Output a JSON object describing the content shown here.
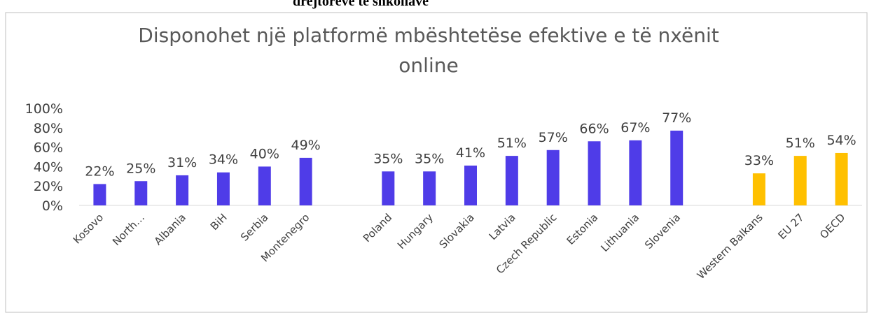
{
  "header_fragment": "drejtorëve të shkollave",
  "chart_data": {
    "type": "bar",
    "title": "Disponohet një platformë mbështetëse efektive e të nxënit online",
    "categories": [
      "Kosovo",
      "North…",
      "Albania",
      "BiH",
      "Serbia",
      "Montenegro",
      null,
      "Poland",
      "Hungary",
      "Slovakia",
      "Latvia",
      "Czech Republic",
      "Estonia",
      "Lithuania",
      "Slovenia",
      null,
      "Western Balkans",
      "EU 27",
      "OECD"
    ],
    "values": [
      22,
      25,
      31,
      34,
      40,
      49,
      null,
      35,
      35,
      41,
      51,
      57,
      66,
      67,
      77,
      null,
      33,
      51,
      54
    ],
    "value_labels": [
      "22%",
      "25%",
      "31%",
      "34%",
      "40%",
      "49%",
      null,
      "35%",
      "35%",
      "41%",
      "51%",
      "57%",
      "66%",
      "67%",
      "77%",
      null,
      "33%",
      "51%",
      "54%"
    ],
    "colors": [
      "#4f3ce8",
      "#4f3ce8",
      "#4f3ce8",
      "#4f3ce8",
      "#4f3ce8",
      "#4f3ce8",
      null,
      "#4f3ce8",
      "#4f3ce8",
      "#4f3ce8",
      "#4f3ce8",
      "#4f3ce8",
      "#4f3ce8",
      "#4f3ce8",
      "#4f3ce8",
      null,
      "#ffc000",
      "#ffc000",
      "#ffc000"
    ],
    "ylim": [
      0,
      100
    ],
    "yticks": [
      {
        "value": 0,
        "label": "0%"
      },
      {
        "value": 20,
        "label": "20%"
      },
      {
        "value": 40,
        "label": "40%"
      },
      {
        "value": 60,
        "label": "60%"
      },
      {
        "value": 80,
        "label": "80%"
      },
      {
        "value": 100,
        "label": "100%"
      }
    ],
    "grid": false
  }
}
